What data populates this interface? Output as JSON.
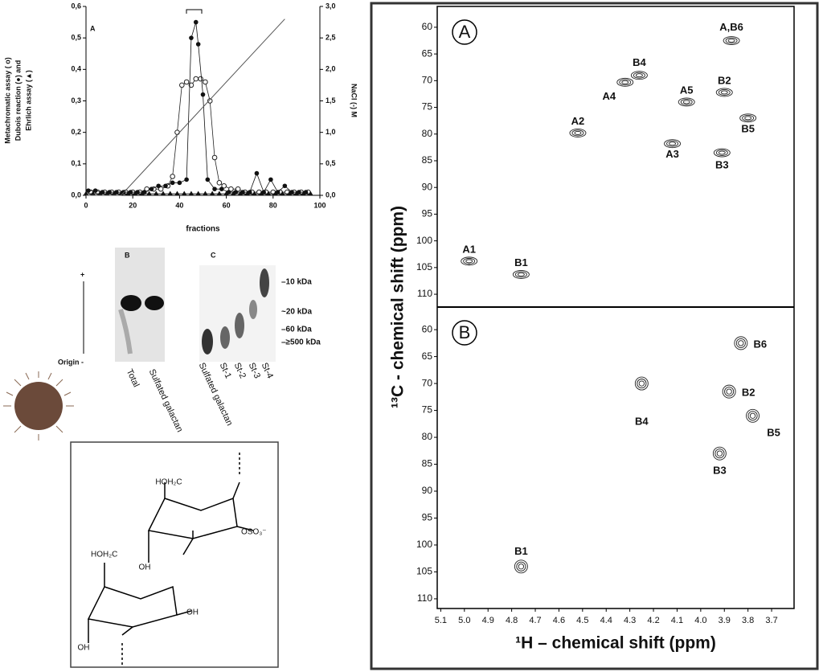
{
  "chart_data": [
    {
      "type": "line",
      "panel": "A",
      "xlabel": "fractions",
      "ylabel": [
        "Metachromatic assay ( o)",
        "Dubois reaction (●) and",
        "Ehrlich assay (▲)"
      ],
      "y2label": "NaCl (-) M",
      "xlim": [
        0,
        100
      ],
      "xticks": [
        0,
        20,
        40,
        60,
        80,
        100
      ],
      "ylim": [
        0,
        0.6
      ],
      "yticks": [
        {
          "value": 0,
          "label": "0,0"
        },
        {
          "value": 0.1,
          "label": "0,1"
        },
        {
          "value": 0.2,
          "label": "0,2"
        },
        {
          "value": 0.3,
          "label": "0,3"
        },
        {
          "value": 0.4,
          "label": "0,4"
        },
        {
          "value": 0.5,
          "label": "0,5"
        },
        {
          "value": 0.6,
          "label": "0,6"
        }
      ],
      "y2lim": [
        0,
        3
      ],
      "y2ticks": [
        {
          "value": 0,
          "label": "0,0"
        },
        {
          "value": 0.5,
          "label": "0,5"
        },
        {
          "value": 1,
          "label": "1,0"
        },
        {
          "value": 1.5,
          "label": "1,5"
        },
        {
          "value": 2,
          "label": "2,0"
        },
        {
          "value": 2.5,
          "label": "2,5"
        },
        {
          "value": 3,
          "label": "3,0"
        }
      ],
      "series": [
        {
          "marker": "open-circle",
          "color": "#222",
          "x": [
            2,
            5,
            8,
            11,
            14,
            17,
            20,
            23,
            26,
            29,
            32,
            35,
            37,
            39,
            41,
            43,
            45,
            47,
            49,
            51,
            53,
            55,
            57,
            59,
            62,
            65,
            68,
            71,
            74,
            77,
            80,
            83,
            86,
            89,
            92,
            95
          ],
          "values": [
            0.01,
            0.01,
            0.01,
            0.01,
            0.01,
            0.01,
            0.01,
            0.01,
            0.02,
            0.02,
            0.02,
            0.03,
            0.06,
            0.2,
            0.35,
            0.36,
            0.35,
            0.37,
            0.37,
            0.36,
            0.3,
            0.12,
            0.04,
            0.03,
            0.02,
            0.02,
            0.01,
            0.01,
            0.01,
            0.01,
            0.01,
            0.01,
            0.01,
            0.01,
            0.01,
            0.01
          ]
        },
        {
          "marker": "circle",
          "color": "#111",
          "x": [
            1,
            4,
            7,
            10,
            13,
            16,
            19,
            22,
            25,
            28,
            31,
            34,
            37,
            40,
            43,
            45,
            47,
            48,
            50,
            52,
            55,
            58,
            61,
            64,
            67,
            70,
            73,
            76,
            79,
            82,
            85,
            88,
            91,
            94
          ],
          "values": [
            0.015,
            0.015,
            0.01,
            0.01,
            0.01,
            0.01,
            0.01,
            0.01,
            0.01,
            0.02,
            0.03,
            0.03,
            0.04,
            0.04,
            0.05,
            0.5,
            0.55,
            0.48,
            0.32,
            0.05,
            0.02,
            0.02,
            0.01,
            0.01,
            0.01,
            0.01,
            0.07,
            0.01,
            0.05,
            0.01,
            0.03,
            0.01,
            0.01,
            0.01
          ]
        },
        {
          "marker": "triangle",
          "color": "#111",
          "x": [
            0,
            3,
            6,
            9,
            12,
            15,
            18,
            21,
            24,
            27,
            30,
            33,
            36,
            39,
            42,
            45,
            48,
            51,
            54,
            57,
            60,
            63,
            66,
            69,
            72,
            75,
            78,
            81,
            84,
            87,
            90,
            93,
            96
          ],
          "values": [
            0.005,
            0.005,
            0.005,
            0.005,
            0.005,
            0.005,
            0.005,
            0.005,
            0.005,
            0.005,
            0.005,
            0.005,
            0.005,
            0.005,
            0.005,
            0.005,
            0.005,
            0.005,
            0.005,
            0.005,
            0.005,
            0.005,
            0.005,
            0.005,
            0.005,
            0.005,
            0.005,
            0.005,
            0.005,
            0.005,
            0.005,
            0.005,
            0.005
          ]
        },
        {
          "marker": "none",
          "color": "#555",
          "axis": "y2",
          "x": [
            0,
            15,
            85
          ],
          "values": [
            0,
            0,
            2.8
          ]
        }
      ]
    },
    {
      "type": "contour",
      "panel": "A",
      "ylabel": "¹³C - chemical shift (ppm)",
      "xlim": [
        5.115,
        3.605
      ],
      "ylim": [
        56.1,
        112.4
      ],
      "yticks": [
        60,
        65,
        70,
        75,
        80,
        85,
        90,
        95,
        100,
        105,
        110
      ],
      "x": [
        3.87,
        4.26,
        4.32,
        4.06,
        3.9,
        3.8,
        4.52,
        4.12,
        3.91,
        4.98,
        4.76
      ],
      "values": [
        62.5,
        69,
        70.3,
        74,
        72.2,
        77,
        79.8,
        81.8,
        83.5,
        103.8,
        106.3
      ],
      "labels": [
        "A,B6",
        "B4",
        "A4",
        "A5",
        "B2",
        "B5",
        "A2",
        "A3",
        "B3",
        "A1",
        "B1"
      ]
    },
    {
      "type": "contour",
      "panel": "B",
      "xlabel": "¹H – chemical shift (ppm)",
      "xlim": [
        5.115,
        3.605
      ],
      "ylim": [
        55.8,
        111.8
      ],
      "xticks": [
        5.1,
        {
          "value": 5,
          "label": "5.0"
        },
        4.9,
        4.8,
        4.7,
        4.6,
        4.5,
        4.4,
        4.3,
        4.2,
        4.1,
        {
          "value": 4,
          "label": "4.0"
        },
        3.9,
        3.8,
        3.7
      ],
      "yticks": [
        60,
        65,
        70,
        75,
        80,
        85,
        90,
        95,
        100,
        105,
        110
      ],
      "x": [
        3.83,
        4.25,
        3.88,
        3.78,
        3.92,
        4.76
      ],
      "values": [
        62.5,
        70,
        71.5,
        76,
        83,
        104
      ],
      "labels": [
        "B6",
        "B4",
        "B2",
        "B5",
        "B3",
        "B1"
      ]
    }
  ],
  "gel_b": {
    "panel": "B",
    "direction": "+",
    "origin": "Origin -",
    "lanes": [
      "Total",
      "Sulfated galactan"
    ]
  },
  "gel_c": {
    "panel": "C",
    "lanes": [
      "Sulfated galactan",
      "St-1",
      "St-2",
      "St-3",
      "St-4"
    ],
    "markers": [
      "–10 kDa",
      "~20 kDa",
      "–60 kDa",
      "–≥500 kDa"
    ]
  },
  "structure": {
    "labels": [
      "HOH₂C",
      "OSO₃⁻",
      "OH",
      "HOH₂C",
      "OH",
      "OH"
    ]
  }
}
